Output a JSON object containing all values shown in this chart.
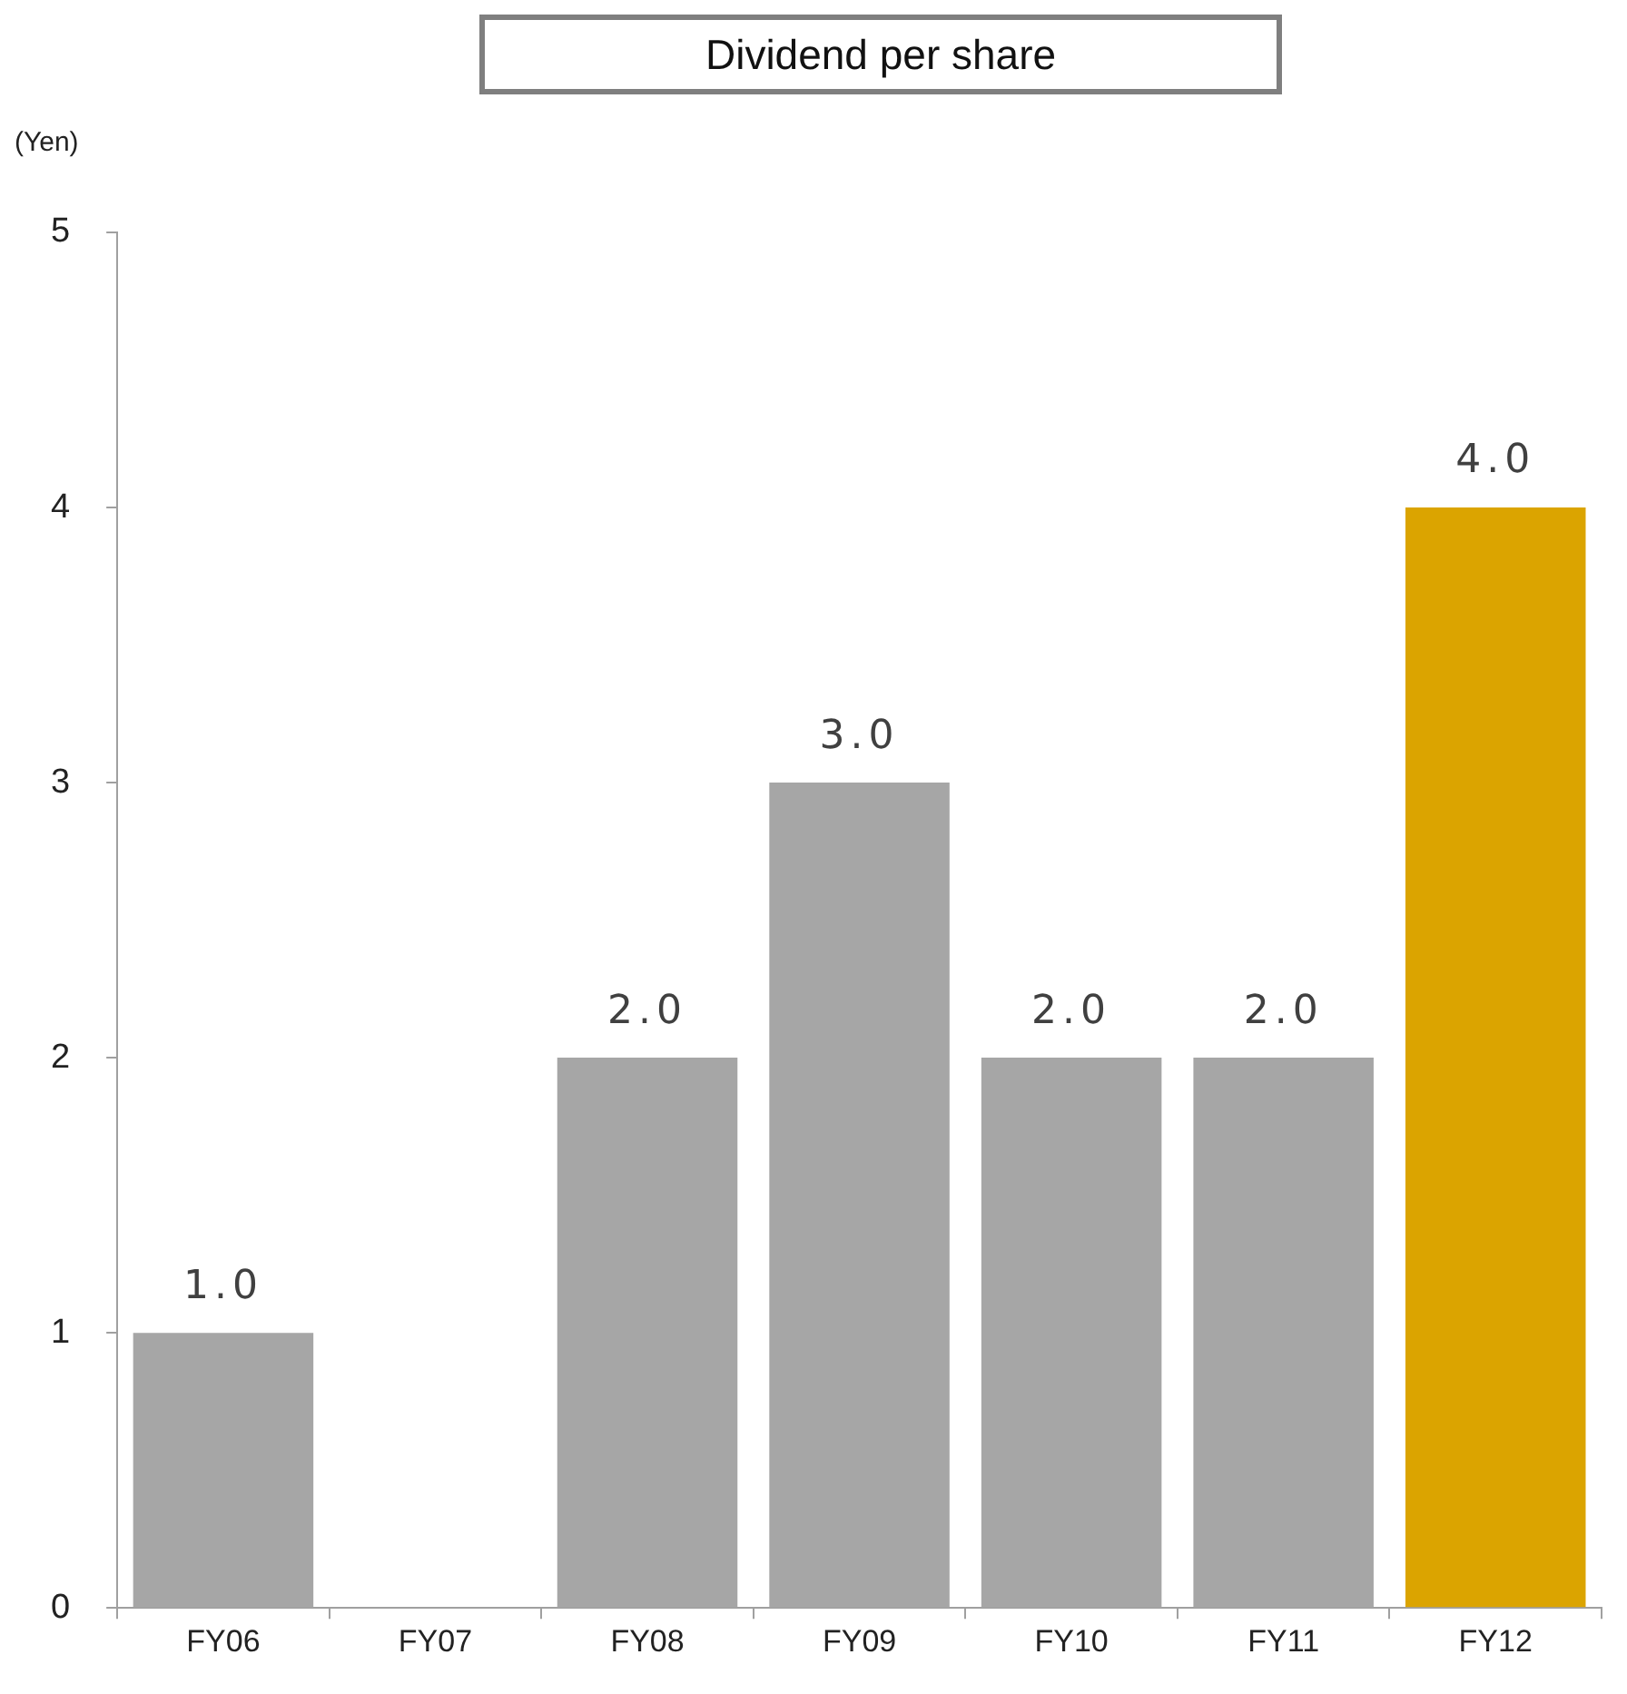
{
  "chart_data": {
    "type": "bar",
    "title": "Dividend per share",
    "ylabel": "(Yen)",
    "categories": [
      "FY06",
      "FY07",
      "FY08",
      "FY09",
      "FY10",
      "FY11",
      "FY12"
    ],
    "values": [
      1,
      0,
      2,
      3,
      2,
      2,
      4
    ],
    "value_labels": [
      "1.0",
      null,
      "2.0",
      "3.0",
      "2.0",
      "2.0",
      "4.0"
    ],
    "colors": [
      "#a6a6a6",
      "#a6a6a6",
      "#a6a6a6",
      "#a6a6a6",
      "#a6a6a6",
      "#a6a6a6",
      "#dba400"
    ],
    "ylim": [
      0,
      5
    ],
    "yticks": [
      0,
      1,
      2,
      3,
      4,
      5
    ],
    "grid": false,
    "legend": false
  }
}
